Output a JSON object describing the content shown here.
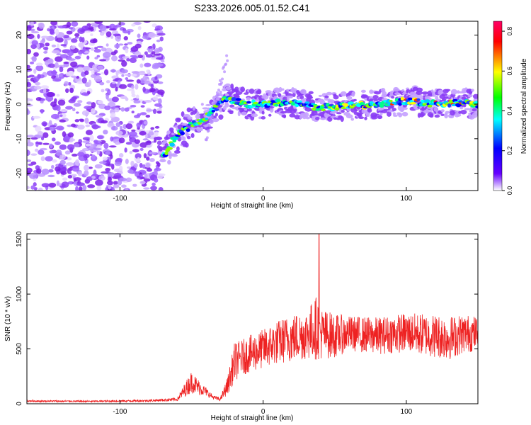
{
  "title": "S233.2026.005.01.52.C41",
  "chart_data": [
    {
      "type": "heatmap",
      "xlabel": "Height of straight line (km)",
      "ylabel": "Frequency (Hz)",
      "xlim": [
        -165,
        150
      ],
      "ylim": [
        -25,
        24
      ],
      "xticks": [
        -100,
        0,
        100
      ],
      "yticks": [
        -20,
        -10,
        0,
        10,
        20
      ],
      "colorbar": {
        "label": "Normalized spectral amplitude",
        "range": [
          0,
          0.85
        ],
        "ticks": [
          "0.0",
          "0.2",
          "0.4",
          "0.6",
          "0.8"
        ],
        "colors": [
          "#ffffff",
          "#6600ff",
          "#0000ff",
          "#00ffff",
          "#00ff00",
          "#ffff00",
          "#ff0000",
          "#ff0066"
        ]
      },
      "noise_region": {
        "x": [
          -165,
          -70
        ],
        "y": [
          -25,
          24
        ]
      },
      "track": {
        "x": [
          -70,
          -60,
          -50,
          -40,
          -30,
          -25,
          -20,
          -10,
          0,
          20,
          40,
          60,
          80,
          100,
          120,
          140,
          150
        ],
        "freq": [
          -15,
          -9,
          -6,
          -4,
          0,
          2,
          1,
          0,
          0,
          0.5,
          -1,
          -0.5,
          0,
          1,
          0,
          0.5,
          0
        ]
      }
    },
    {
      "type": "line",
      "xlabel": "Height of straight line (km)",
      "ylabel": "SNR (10 * v/v)",
      "xlim": [
        -165,
        150
      ],
      "ylim": [
        0,
        1550
      ],
      "xticks": [
        -100,
        0,
        100
      ],
      "yticks": [
        0,
        500,
        1000,
        1500
      ],
      "color": "#ee2222",
      "series_envelope": {
        "x": [
          -165,
          -120,
          -80,
          -60,
          -55,
          -50,
          -45,
          -40,
          -35,
          -30,
          -25,
          -20,
          -15,
          -10,
          0,
          10,
          20,
          30,
          38,
          40,
          50,
          60,
          80,
          100,
          120,
          130,
          140,
          150
        ],
        "mean": [
          25,
          22,
          28,
          40,
          120,
          200,
          150,
          110,
          60,
          40,
          160,
          380,
          420,
          450,
          500,
          560,
          600,
          630,
          700,
          640,
          620,
          640,
          620,
          650,
          620,
          600,
          640,
          640
        ],
        "amp": [
          8,
          8,
          10,
          15,
          60,
          100,
          70,
          40,
          20,
          15,
          80,
          180,
          160,
          170,
          180,
          200,
          220,
          230,
          300,
          240,
          200,
          160,
          170,
          180,
          200,
          200,
          180,
          160
        ]
      },
      "peak": {
        "x": 39,
        "y": 1550
      }
    }
  ]
}
